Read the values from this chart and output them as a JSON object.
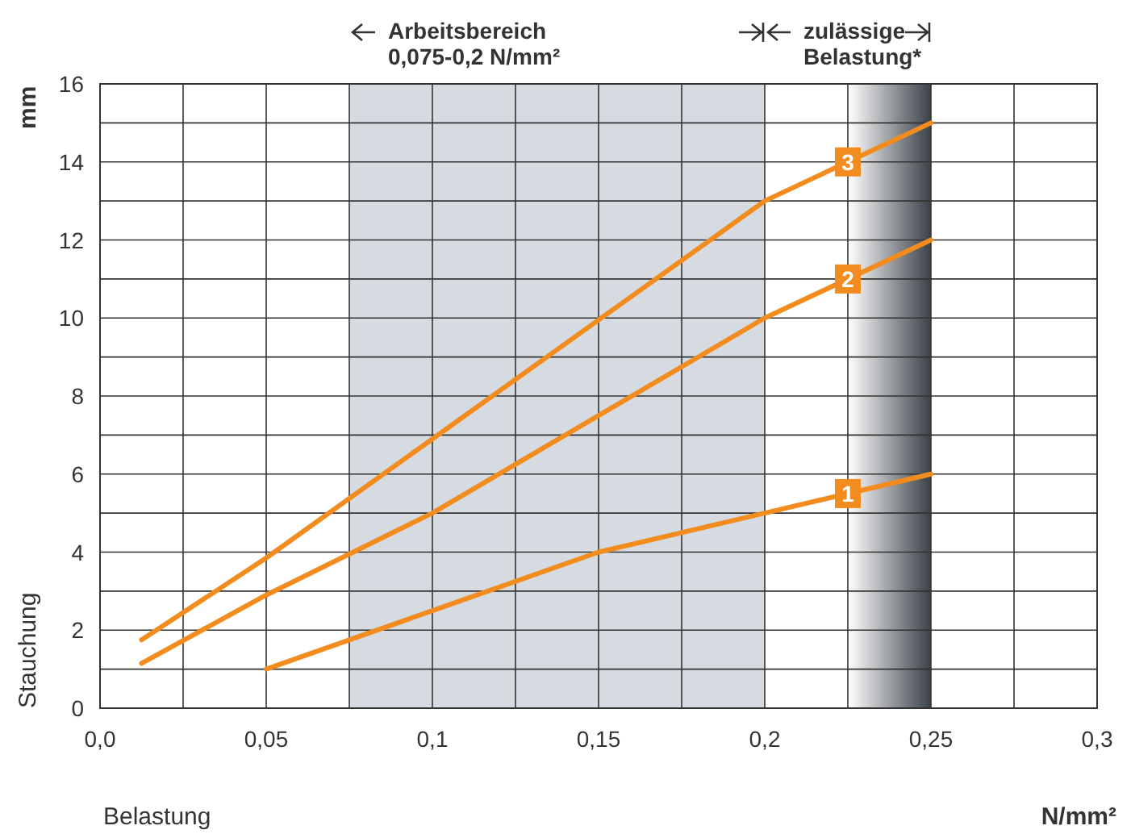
{
  "chart_data": {
    "type": "line",
    "xlabel": "Belastung",
    "ylabel": "Stauchung",
    "annotations": [
      "mm",
      "N/mm²"
    ],
    "xlim": [
      0,
      0.3
    ],
    "ylim": [
      0,
      16
    ],
    "xticks": [
      {
        "value": 0,
        "label": "0,0"
      },
      {
        "value": 0.025,
        "label": null
      },
      {
        "value": 0.05,
        "label": "0,05"
      },
      {
        "value": 0.075,
        "label": null
      },
      {
        "value": 0.1,
        "label": "0,1"
      },
      {
        "value": 0.125,
        "label": null
      },
      {
        "value": 0.15,
        "label": "0,15"
      },
      {
        "value": 0.175,
        "label": null
      },
      {
        "value": 0.2,
        "label": "0,2"
      },
      {
        "value": 0.225,
        "label": null
      },
      {
        "value": 0.25,
        "label": "0,25"
      },
      {
        "value": 0.275,
        "label": null
      },
      {
        "value": 0.3,
        "label": "0,3"
      }
    ],
    "yticks": [
      0,
      {
        "value": 1,
        "label": null
      },
      2,
      {
        "value": 3,
        "label": null
      },
      4,
      {
        "value": 5,
        "label": null
      },
      6,
      {
        "value": 7,
        "label": null
      },
      8,
      {
        "value": 9,
        "label": null
      },
      10,
      {
        "value": 11,
        "label": null
      },
      12,
      {
        "value": 13,
        "label": null
      },
      14,
      {
        "value": 15,
        "label": null
      },
      16
    ],
    "grid": true,
    "legend": "top",
    "marker": "none",
    "line_style": "solid",
    "bands": [
      {
        "axis": "x",
        "from": 0.075,
        "to": 0.2,
        "label": "Arbeitsbereich\n0,075-0,2 N/mm²",
        "color": "#d5dbe0"
      },
      {
        "axis": "x",
        "from": 0.2,
        "to": 0.25,
        "label": "zulässige\nBelastung*",
        "color": "#3b4149"
      }
    ],
    "series": [
      {
        "name": "1",
        "color": "#f28c1e",
        "x": [
          0.05,
          0.1,
          0.15,
          0.2,
          0.25
        ],
        "values": [
          1.0,
          2.5,
          4.0,
          5.0,
          6.0
        ]
      },
      {
        "name": "2",
        "color": "#f28c1e",
        "x": [
          0.0125,
          0.05,
          0.1,
          0.2,
          0.25
        ],
        "values": [
          1.15,
          2.9,
          5.0,
          10.0,
          12.0
        ]
      },
      {
        "name": "3",
        "color": "#f28c1e",
        "x": [
          0.0125,
          0.05,
          0.1,
          0.2,
          0.25
        ],
        "values": [
          1.75,
          3.85,
          6.9,
          13.0,
          15.0
        ]
      }
    ]
  }
}
